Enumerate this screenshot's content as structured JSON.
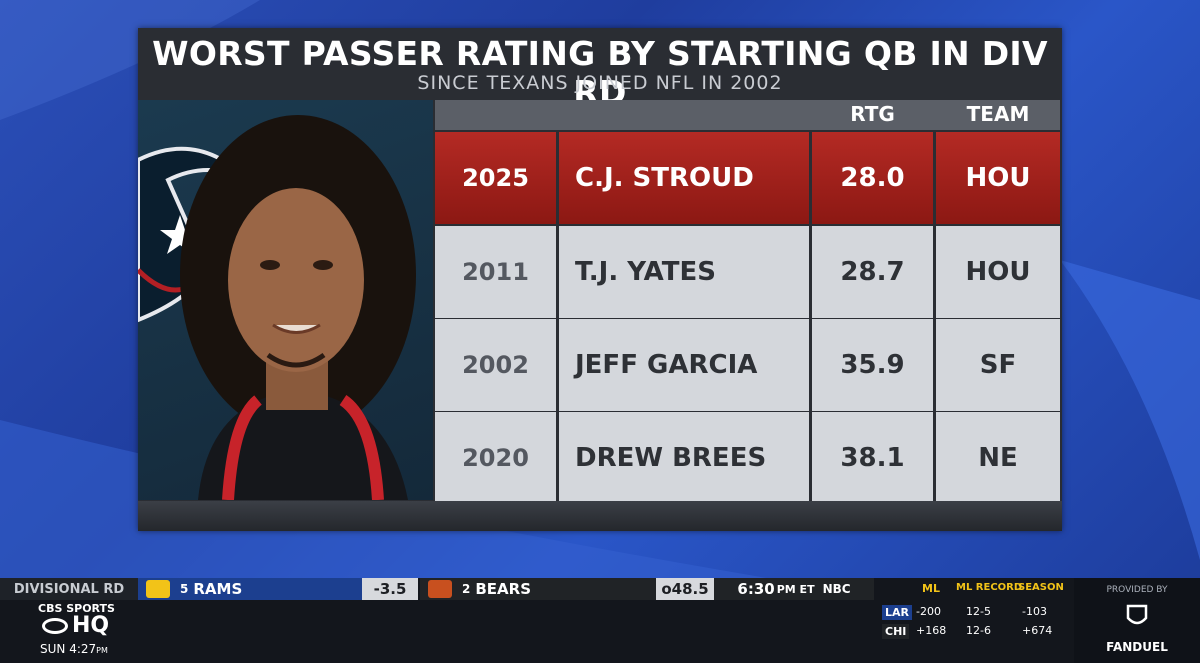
{
  "graphic": {
    "title": "WORST PASSER RATING BY STARTING QB IN DIV RD",
    "subtitle": "SINCE TEXANS JOINED NFL IN 2002",
    "columns": {
      "rtg": "RTG",
      "team": "TEAM"
    },
    "rows": [
      {
        "year": "2025",
        "player": "C.J. STROUD",
        "rtg": "28.0",
        "team": "HOU",
        "highlight": true
      },
      {
        "year": "2011",
        "player": "T.J. YATES",
        "rtg": "28.7",
        "team": "HOU"
      },
      {
        "year": "2002",
        "player": "JEFF GARCIA",
        "rtg": "35.9",
        "team": "SF"
      },
      {
        "year": "2020",
        "player": "DREW BREES",
        "rtg": "38.1",
        "team": "NE"
      }
    ],
    "colors": {
      "highlight": "#b42a24",
      "row": "#d4d7dc",
      "panel": "#2a2d33"
    }
  },
  "ticker": {
    "round": "DIVISIONAL RD",
    "team1": {
      "seed": "5",
      "name": "RAMS"
    },
    "spread": "-3.5",
    "team2": {
      "seed": "2",
      "name": "BEARS"
    },
    "over_under": "o48.5",
    "time": "6:30",
    "time_suffix": "PM ET",
    "network": "NBC",
    "brand_line1": "CBS SPORTS",
    "brand_line2": "HQ",
    "clock": "SUN 4:27",
    "clock_suffix": "PM",
    "odds": {
      "headers": [
        "ML",
        "ML RECORD",
        "SEASON"
      ],
      "rows": [
        {
          "team": "LAR",
          "ml": "-200",
          "record": "12-5",
          "season": "-103"
        },
        {
          "team": "CHI",
          "ml": "+168",
          "record": "12-6",
          "season": "+674"
        }
      ]
    },
    "provided_by": "PROVIDED BY",
    "sponsor": "FANDUEL"
  }
}
